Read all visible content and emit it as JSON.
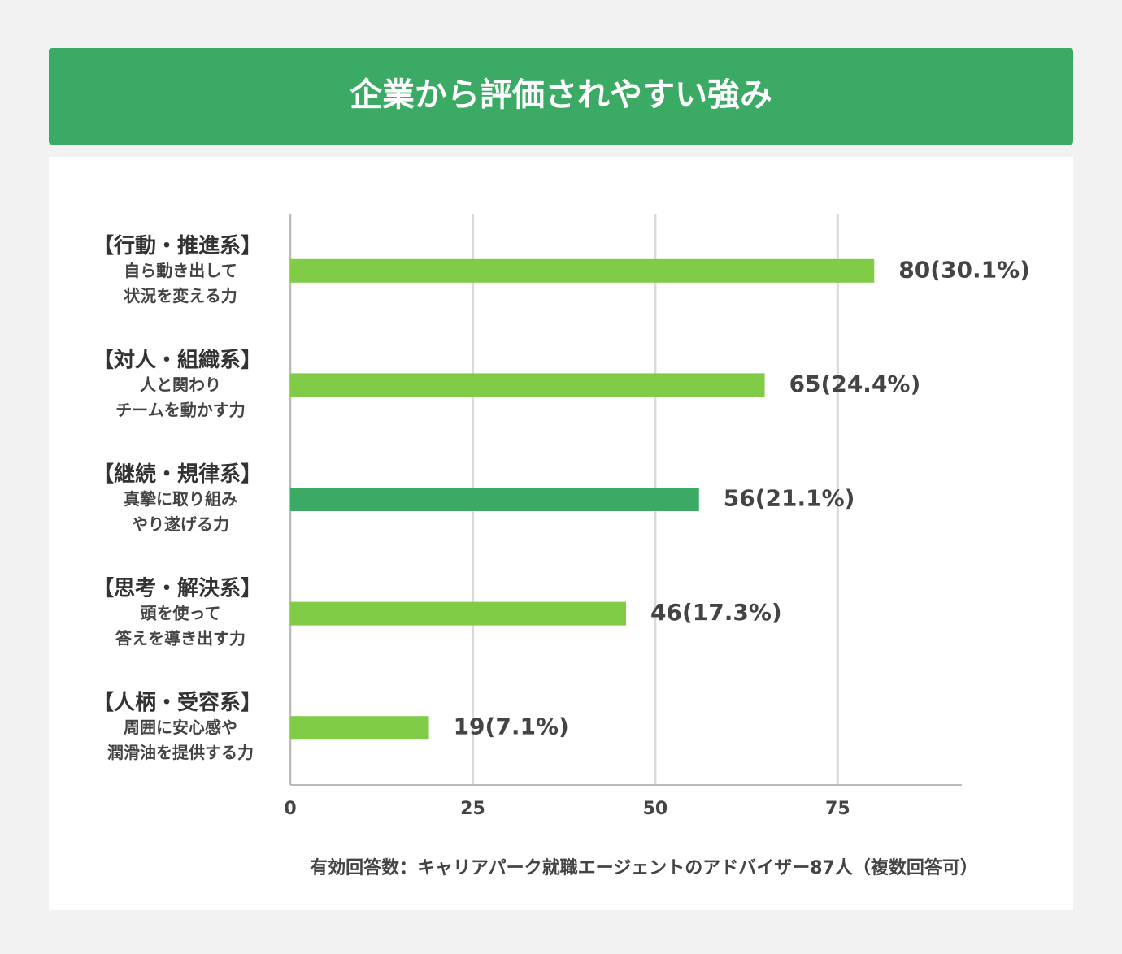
{
  "chart_data": {
    "type": "bar",
    "orientation": "horizontal",
    "title": "企業から評価されやすい強み",
    "categories": [
      "【行動・推進系】",
      "【対人・組織系】",
      "【継続・規律系】",
      "【思考・解決系】",
      "【人柄・受容系】"
    ],
    "category_descriptions": [
      [
        "自ら動き出して",
        "状況を変える力"
      ],
      [
        "人と関わり",
        "チームを動かす力"
      ],
      [
        "真摯に取り組み",
        "やり遂げる力"
      ],
      [
        "頭を使って",
        "答えを導き出す力"
      ],
      [
        "周囲に安心感や",
        "潤滑油を提供する力"
      ]
    ],
    "values": [
      80,
      65,
      56,
      46,
      19
    ],
    "value_labels": [
      "80(30.1%)",
      "65(24.4%)",
      "56(21.1%)",
      "46(17.3%)",
      "19(7.1%)"
    ],
    "colors": [
      "#80cc47",
      "#80cc47",
      "#3aaa64",
      "#80cc47",
      "#80cc47"
    ],
    "xlim": [
      0,
      92
    ],
    "xticks": [
      0,
      25,
      50,
      75
    ],
    "grid": true,
    "footnote": "有効回答数：キャリアパーク就職エージェントのアドバイザー87人（複数回答可）"
  }
}
